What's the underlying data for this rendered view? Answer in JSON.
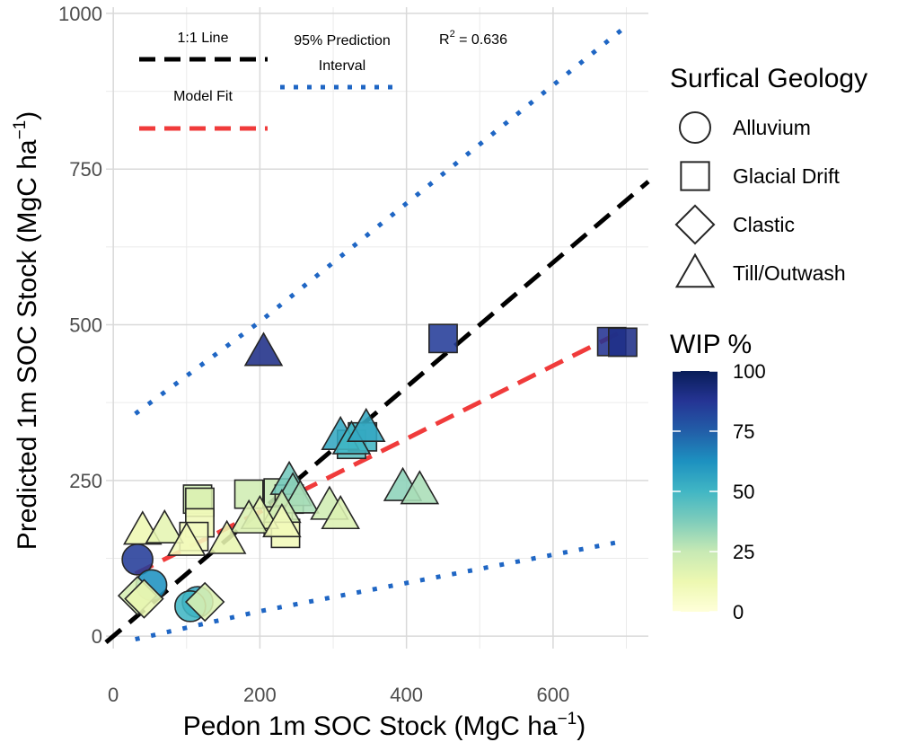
{
  "chart_data": {
    "type": "scatter",
    "xlabel": "Pedon 1m SOC Stock (MgC ha",
    "xlabel_sup": "−1",
    "xlabel_end": ")",
    "ylabel": "Predicted 1m SOC Stock (MgC ha",
    "ylabel_sup": "−1",
    "ylabel_end": ")",
    "xlim": [
      -10,
      730
    ],
    "ylim": [
      -20,
      1010
    ],
    "x_ticks": [
      0,
      200,
      400,
      600
    ],
    "y_ticks": [
      0,
      250,
      500,
      750,
      1000
    ],
    "annotations": {
      "one_to_one": "1:1 Line",
      "model_fit": "Model Fit",
      "pi_line1": "95% Prediction",
      "pi_line2": "Interval",
      "r2_prefix": "R",
      "r2_sup": "2",
      "r2_value": " = 0.636"
    },
    "lines": [
      {
        "name": "1:1 Line",
        "color": "#000000",
        "dash": "dashed",
        "x": [
          -10,
          730
        ],
        "y": [
          -10,
          730
        ]
      },
      {
        "name": "Model Fit",
        "color": "#f03b3b",
        "dash": "dashed",
        "x": [
          30,
          695
        ],
        "y": [
          100,
          490
        ]
      },
      {
        "name": "95% PI upper",
        "color": "#1f66c4",
        "dash": "dotted",
        "x": [
          30,
          200,
          695
        ],
        "y": [
          357,
          505,
          975
        ]
      },
      {
        "name": "95% PI lower",
        "color": "#1f66c4",
        "dash": "dotted",
        "x": [
          30,
          200,
          685
        ],
        "y": [
          -5,
          40,
          150
        ]
      }
    ],
    "points": [
      {
        "x": 33,
        "y": 123,
        "shape": "circle",
        "wip": 85
      },
      {
        "x": 52,
        "y": 82,
        "shape": "circle",
        "wip": 62
      },
      {
        "x": 115,
        "y": 55,
        "shape": "circle",
        "wip": 55
      },
      {
        "x": 105,
        "y": 48,
        "shape": "circle",
        "wip": 50
      },
      {
        "x": 33,
        "y": 65,
        "shape": "diamond",
        "wip": 20
      },
      {
        "x": 42,
        "y": 60,
        "shape": "diamond",
        "wip": 14
      },
      {
        "x": 125,
        "y": 55,
        "shape": "diamond",
        "wip": 18
      },
      {
        "x": 115,
        "y": 220,
        "shape": "square",
        "wip": 22
      },
      {
        "x": 118,
        "y": 215,
        "shape": "square",
        "wip": 18
      },
      {
        "x": 118,
        "y": 182,
        "shape": "square",
        "wip": 10
      },
      {
        "x": 110,
        "y": 160,
        "shape": "square",
        "wip": 8
      },
      {
        "x": 185,
        "y": 228,
        "shape": "square",
        "wip": 22
      },
      {
        "x": 225,
        "y": 230,
        "shape": "square",
        "wip": 25
      },
      {
        "x": 240,
        "y": 220,
        "shape": "square",
        "wip": 18
      },
      {
        "x": 225,
        "y": 185,
        "shape": "square",
        "wip": 15
      },
      {
        "x": 235,
        "y": 165,
        "shape": "square",
        "wip": 10
      },
      {
        "x": 325,
        "y": 308,
        "shape": "square",
        "wip": 45
      },
      {
        "x": 340,
        "y": 320,
        "shape": "square",
        "wip": 50
      },
      {
        "x": 450,
        "y": 478,
        "shape": "square",
        "wip": 85
      },
      {
        "x": 680,
        "y": 473,
        "shape": "square",
        "wip": 88
      },
      {
        "x": 695,
        "y": 472,
        "shape": "square",
        "wip": 90
      },
      {
        "x": 205,
        "y": 457,
        "shape": "triangle",
        "wip": 90
      },
      {
        "x": 310,
        "y": 322,
        "shape": "triangle",
        "wip": 55
      },
      {
        "x": 325,
        "y": 315,
        "shape": "triangle",
        "wip": 50
      },
      {
        "x": 345,
        "y": 335,
        "shape": "triangle",
        "wip": 55
      },
      {
        "x": 240,
        "y": 250,
        "shape": "triangle",
        "wip": 40
      },
      {
        "x": 245,
        "y": 232,
        "shape": "triangle",
        "wip": 35
      },
      {
        "x": 255,
        "y": 220,
        "shape": "triangle",
        "wip": 30
      },
      {
        "x": 230,
        "y": 205,
        "shape": "triangle",
        "wip": 22
      },
      {
        "x": 200,
        "y": 195,
        "shape": "triangle",
        "wip": 15
      },
      {
        "x": 185,
        "y": 188,
        "shape": "triangle",
        "wip": 18
      },
      {
        "x": 230,
        "y": 182,
        "shape": "triangle",
        "wip": 10
      },
      {
        "x": 40,
        "y": 170,
        "shape": "triangle",
        "wip": 12
      },
      {
        "x": 70,
        "y": 172,
        "shape": "triangle",
        "wip": 15
      },
      {
        "x": 100,
        "y": 152,
        "shape": "triangle",
        "wip": 10
      },
      {
        "x": 155,
        "y": 155,
        "shape": "triangle",
        "wip": 14
      },
      {
        "x": 295,
        "y": 210,
        "shape": "triangle",
        "wip": 22
      },
      {
        "x": 310,
        "y": 195,
        "shape": "triangle",
        "wip": 18
      },
      {
        "x": 395,
        "y": 240,
        "shape": "triangle",
        "wip": 35
      },
      {
        "x": 418,
        "y": 235,
        "shape": "triangle",
        "wip": 30
      }
    ]
  },
  "legend": {
    "shape_title": "Surfical Geology",
    "shapes": [
      {
        "shape": "circle",
        "label": "Alluvium"
      },
      {
        "shape": "square",
        "label": "Glacial Drift"
      },
      {
        "shape": "diamond",
        "label": "Clastic"
      },
      {
        "shape": "triangle",
        "label": "Till/Outwash"
      }
    ],
    "color_title": "WIP %",
    "color_ticks": [
      0,
      25,
      50,
      75,
      100
    ],
    "color_range": [
      0,
      100
    ],
    "colorscale": [
      "#ffffd9",
      "#edf8b1",
      "#c7e9b4",
      "#7fcdbb",
      "#41b6c4",
      "#1d91c0",
      "#225ea8",
      "#253494",
      "#081d58"
    ]
  }
}
